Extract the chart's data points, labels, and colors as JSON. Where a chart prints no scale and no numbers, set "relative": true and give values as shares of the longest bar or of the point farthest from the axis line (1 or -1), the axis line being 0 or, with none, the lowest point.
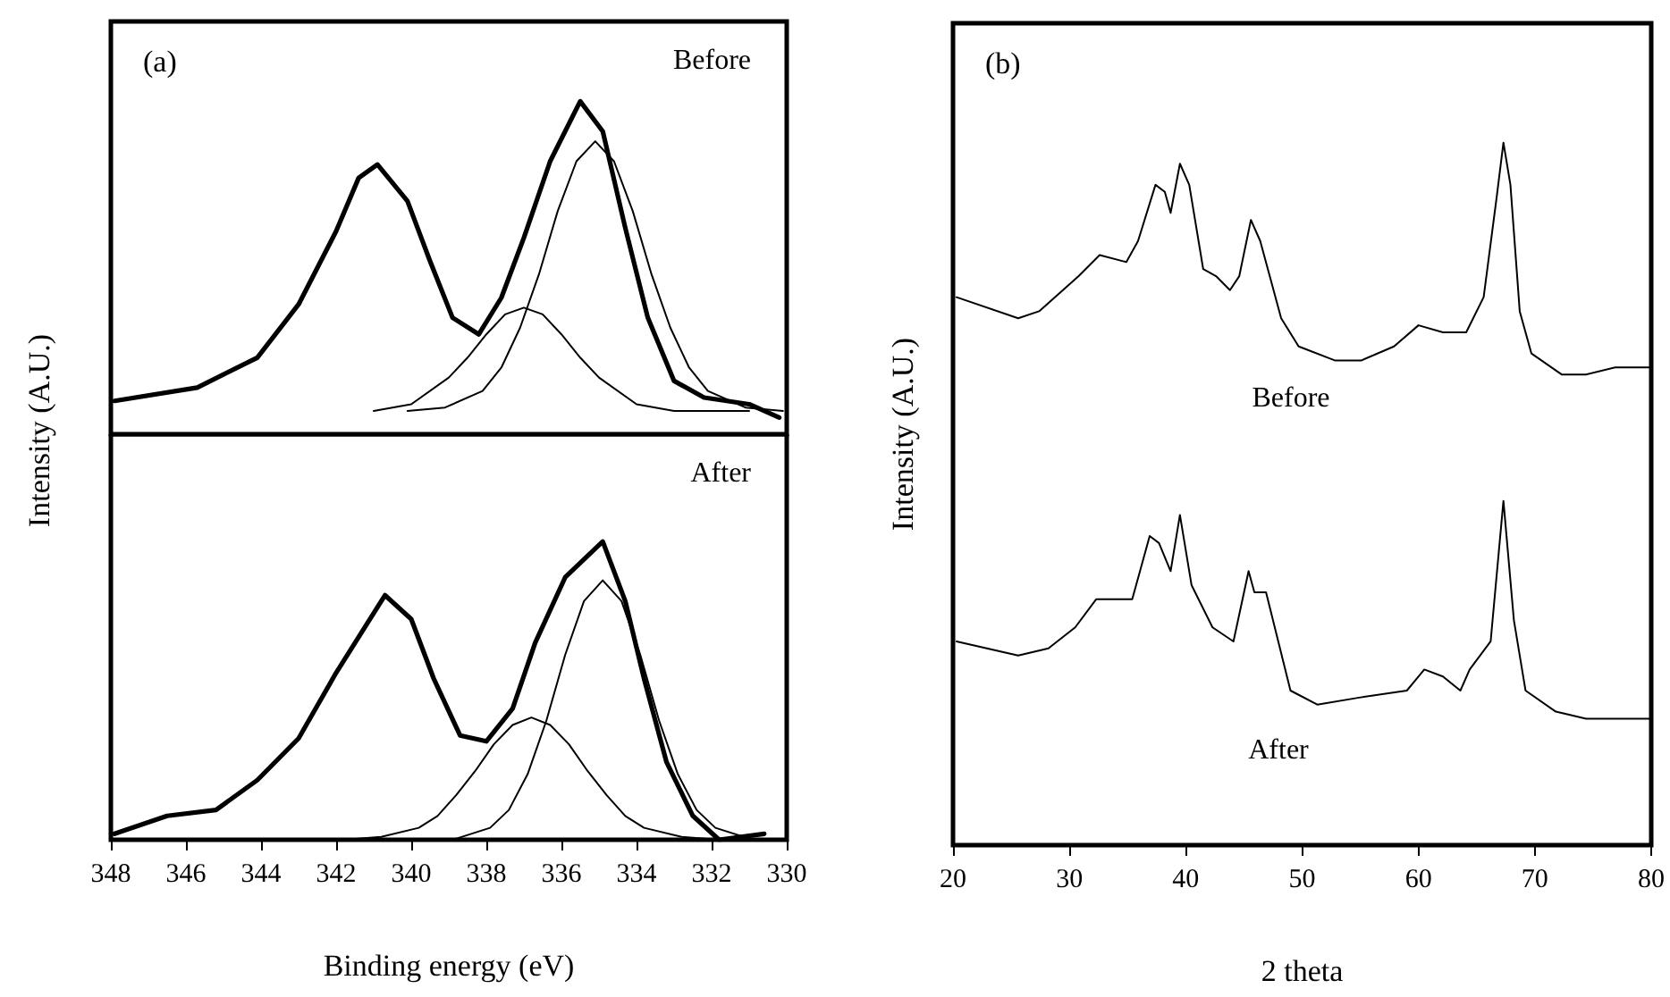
{
  "chart_data": [
    {
      "type": "line",
      "title": "(a)",
      "annotations": [
        "Before"
      ],
      "relative": true,
      "xlim": [
        348,
        330
      ],
      "xticks": [
        348,
        346,
        344,
        342,
        340,
        338,
        336,
        334,
        332,
        330
      ],
      "tick_labels": false,
      "grid": false,
      "marker": "none",
      "ylabel": "Intensity (A.U.)",
      "series": [
        {
          "color": "#000000",
          "x": [
            347.9,
            345.7,
            344.1,
            343.0,
            342.0,
            341.4,
            340.9,
            340.1,
            339.5,
            338.9,
            338.2,
            337.6,
            337.0,
            336.3,
            335.5,
            334.9,
            334.3,
            333.7,
            333.0,
            332.2,
            331.0,
            330.2
          ],
          "values": [
            0.1,
            0.14,
            0.23,
            0.39,
            0.61,
            0.77,
            0.81,
            0.7,
            0.52,
            0.35,
            0.3,
            0.41,
            0.59,
            0.82,
            1.0,
            0.91,
            0.62,
            0.35,
            0.16,
            0.11,
            0.09,
            0.05
          ]
        },
        {
          "color": "#000000",
          "x": [
            341.0,
            340.0,
            339.0,
            338.5,
            338.0,
            337.5,
            337.0,
            336.5,
            336.0,
            335.5,
            335.0,
            334.0,
            333.0,
            331.0
          ],
          "values": [
            0.07,
            0.09,
            0.17,
            0.23,
            0.3,
            0.36,
            0.38,
            0.36,
            0.3,
            0.23,
            0.17,
            0.09,
            0.07,
            0.07
          ]
        },
        {
          "color": "#000000",
          "x": [
            340.1,
            339.1,
            338.1,
            337.6,
            337.1,
            336.6,
            336.1,
            335.6,
            335.1,
            334.6,
            334.1,
            333.6,
            333.1,
            332.6,
            332.1,
            331.1,
            330.1
          ],
          "values": [
            0.07,
            0.08,
            0.13,
            0.2,
            0.32,
            0.48,
            0.67,
            0.82,
            0.88,
            0.82,
            0.67,
            0.48,
            0.32,
            0.2,
            0.13,
            0.08,
            0.07
          ]
        }
      ]
    },
    {
      "type": "line",
      "annotations": [
        "After"
      ],
      "relative": true,
      "xlim": [
        348,
        330
      ],
      "xticks": [
        348,
        346,
        344,
        342,
        340,
        338,
        336,
        334,
        332,
        330
      ],
      "xlabel": "Binding energy (eV)",
      "grid": false,
      "marker": "none",
      "series": [
        {
          "color": "#000000",
          "x": [
            347.9,
            346.5,
            345.2,
            344.1,
            343.0,
            342.0,
            341.3,
            340.7,
            340.0,
            339.4,
            338.7,
            338.0,
            337.3,
            336.7,
            335.9,
            334.9,
            334.3,
            333.8,
            333.2,
            332.5,
            331.8,
            330.6
          ],
          "values": [
            0.02,
            0.08,
            0.1,
            0.2,
            0.34,
            0.56,
            0.7,
            0.82,
            0.74,
            0.54,
            0.35,
            0.33,
            0.44,
            0.66,
            0.88,
            1.0,
            0.8,
            0.54,
            0.26,
            0.08,
            0.0,
            0.02
          ]
        },
        {
          "color": "#000000",
          "x": [
            341.8,
            340.8,
            339.8,
            339.3,
            338.8,
            338.3,
            337.8,
            337.3,
            336.8,
            336.3,
            335.8,
            335.3,
            334.8,
            334.3,
            333.8,
            332.8,
            331.8
          ],
          "values": [
            0.0,
            0.01,
            0.04,
            0.08,
            0.15,
            0.23,
            0.32,
            0.385,
            0.41,
            0.385,
            0.32,
            0.23,
            0.15,
            0.08,
            0.04,
            0.01,
            0.0
          ]
        },
        {
          "color": "#000000",
          "x": [
            339.9,
            338.9,
            337.9,
            337.4,
            336.9,
            336.4,
            335.9,
            335.4,
            334.9,
            334.4,
            333.9,
            333.4,
            332.9,
            332.4,
            331.9,
            330.9
          ],
          "values": [
            0.0,
            0.0,
            0.04,
            0.1,
            0.22,
            0.4,
            0.62,
            0.8,
            0.87,
            0.8,
            0.62,
            0.4,
            0.22,
            0.1,
            0.04,
            0.0
          ]
        }
      ]
    },
    {
      "type": "line",
      "title": "(b)",
      "relative": true,
      "xlim": [
        20,
        80
      ],
      "xticks": [
        20,
        30,
        40,
        50,
        60,
        70,
        80
      ],
      "xlabel": "2 theta",
      "ylabel": "Intensity (A.U.)",
      "grid": false,
      "marker": "none",
      "annotations": [
        "Before",
        "After"
      ],
      "series": [
        {
          "color": "#000000",
          "x": [
            20.3,
            25.6,
            27.4,
            30.8,
            32.6,
            34.9,
            35.9,
            37.4,
            38.2,
            38.7,
            39.5,
            40.3,
            41.5,
            42.6,
            43.8,
            44.6,
            45.6,
            46.4,
            48.2,
            49.7,
            52.8,
            55.1,
            57.9,
            60.0,
            62.1,
            64.1,
            65.6,
            66.7,
            67.3,
            67.9,
            68.7,
            69.7,
            72.3,
            74.4,
            76.9,
            80.0
          ],
          "values": [
            0.78,
            0.75,
            0.76,
            0.81,
            0.84,
            0.83,
            0.86,
            0.94,
            0.93,
            0.9,
            0.97,
            0.94,
            0.82,
            0.81,
            0.79,
            0.81,
            0.89,
            0.86,
            0.75,
            0.71,
            0.69,
            0.69,
            0.71,
            0.74,
            0.73,
            0.73,
            0.78,
            0.92,
            1.0,
            0.94,
            0.76,
            0.7,
            0.67,
            0.67,
            0.68,
            0.68
          ]
        },
        {
          "color": "#000000",
          "x": [
            20.3,
            25.6,
            28.2,
            30.5,
            32.3,
            35.4,
            36.9,
            37.7,
            38.7,
            39.5,
            40.5,
            42.3,
            44.1,
            45.4,
            45.9,
            46.9,
            49.0,
            51.3,
            54.9,
            59.0,
            60.5,
            62.1,
            63.6,
            64.4,
            66.2,
            67.3,
            68.2,
            69.2,
            71.8,
            74.4,
            76.9,
            80.0
          ],
          "values": [
            0.29,
            0.27,
            0.28,
            0.31,
            0.35,
            0.35,
            0.44,
            0.43,
            0.39,
            0.47,
            0.37,
            0.31,
            0.29,
            0.39,
            0.36,
            0.36,
            0.22,
            0.2,
            0.21,
            0.22,
            0.25,
            0.24,
            0.22,
            0.25,
            0.29,
            0.49,
            0.32,
            0.22,
            0.19,
            0.18,
            0.18,
            0.18
          ]
        }
      ]
    }
  ]
}
